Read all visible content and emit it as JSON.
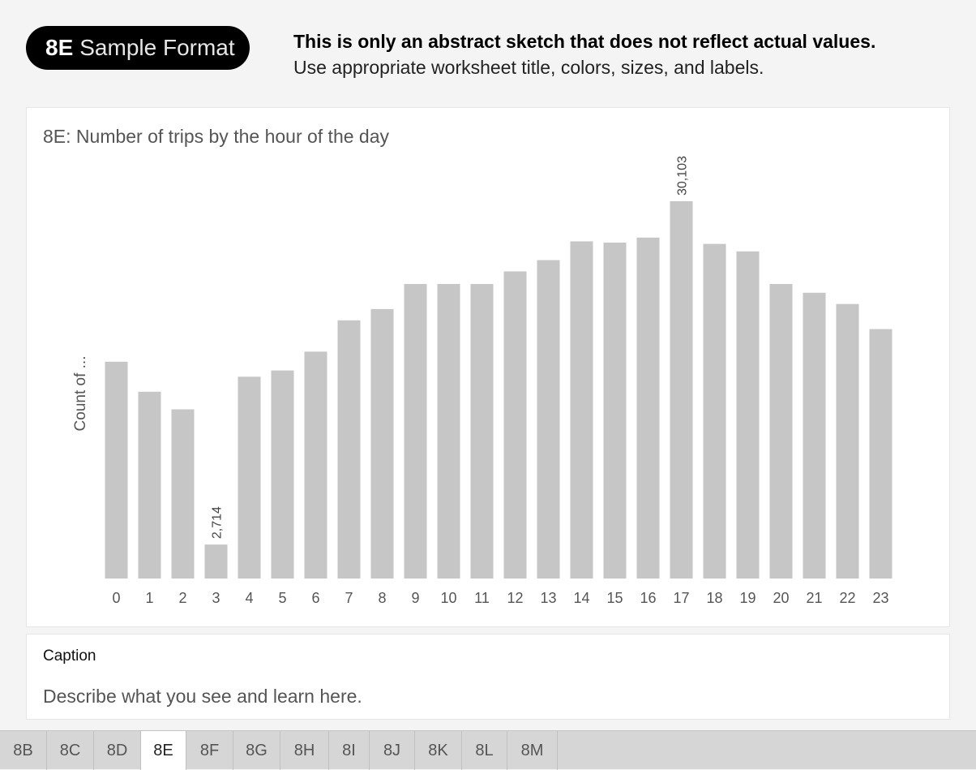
{
  "header": {
    "pill_code": "8E",
    "pill_label": "Sample Format",
    "notice_line1": "This is only an abstract sketch that does not reflect actual values.",
    "notice_line2": "Use appropriate worksheet title, colors, sizes, and labels."
  },
  "chart_data": {
    "type": "bar",
    "title": "8E: Number of trips by the hour of the day",
    "xlabel": "",
    "ylabel": "Count of ...",
    "categories": [
      "0",
      "1",
      "2",
      "3",
      "4",
      "5",
      "6",
      "7",
      "8",
      "9",
      "10",
      "11",
      "12",
      "13",
      "14",
      "15",
      "16",
      "17",
      "18",
      "19",
      "20",
      "21",
      "22",
      "23"
    ],
    "values": [
      17300,
      14900,
      13500,
      2714,
      16100,
      16600,
      18100,
      20600,
      21500,
      23500,
      23500,
      23500,
      24500,
      25400,
      26900,
      26800,
      27200,
      30103,
      26700,
      26100,
      23500,
      22800,
      21900,
      19900
    ],
    "data_labels": [
      {
        "index": 3,
        "text": "2,714"
      },
      {
        "index": 17,
        "text": "30,103"
      }
    ],
    "colors": {
      "bar": "#c6c6c6"
    },
    "grid": false
  },
  "caption": {
    "title": "Caption",
    "body": "Describe what you see and learn here."
  },
  "tabs": [
    {
      "label": "8B",
      "active": false
    },
    {
      "label": "8C",
      "active": false
    },
    {
      "label": "8D",
      "active": false
    },
    {
      "label": "8E",
      "active": true
    },
    {
      "label": "8F",
      "active": false
    },
    {
      "label": "8G",
      "active": false
    },
    {
      "label": "8H",
      "active": false
    },
    {
      "label": "8I",
      "active": false
    },
    {
      "label": "8J",
      "active": false
    },
    {
      "label": "8K",
      "active": false
    },
    {
      "label": "8L",
      "active": false
    },
    {
      "label": "8M",
      "active": false
    }
  ]
}
